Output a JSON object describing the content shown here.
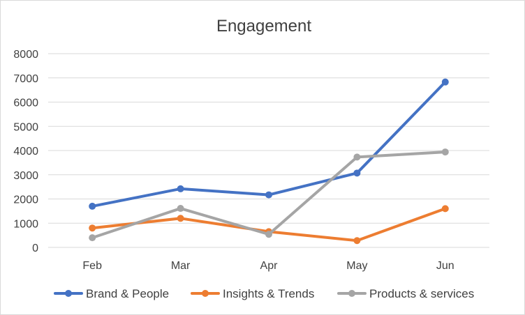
{
  "chart_data": {
    "type": "line",
    "title": "Engagement",
    "xlabel": "",
    "ylabel": "",
    "categories": [
      "Feb",
      "Mar",
      "Apr",
      "May",
      "Jun"
    ],
    "ylim": [
      0,
      8000
    ],
    "yticks": [
      0,
      1000,
      2000,
      3000,
      4000,
      5000,
      6000,
      7000,
      8000
    ],
    "grid": "horizontal",
    "legend": "bottom",
    "series": [
      {
        "name": "Brand & People",
        "color": "#4472c4",
        "values": [
          1700,
          2420,
          2170,
          3070,
          6830
        ]
      },
      {
        "name": "Insights & Trends",
        "color": "#ed7d31",
        "values": [
          800,
          1200,
          650,
          280,
          1600
        ]
      },
      {
        "name": "Products & services",
        "color": "#a5a5a5",
        "values": [
          400,
          1610,
          540,
          3730,
          3940
        ]
      }
    ]
  }
}
